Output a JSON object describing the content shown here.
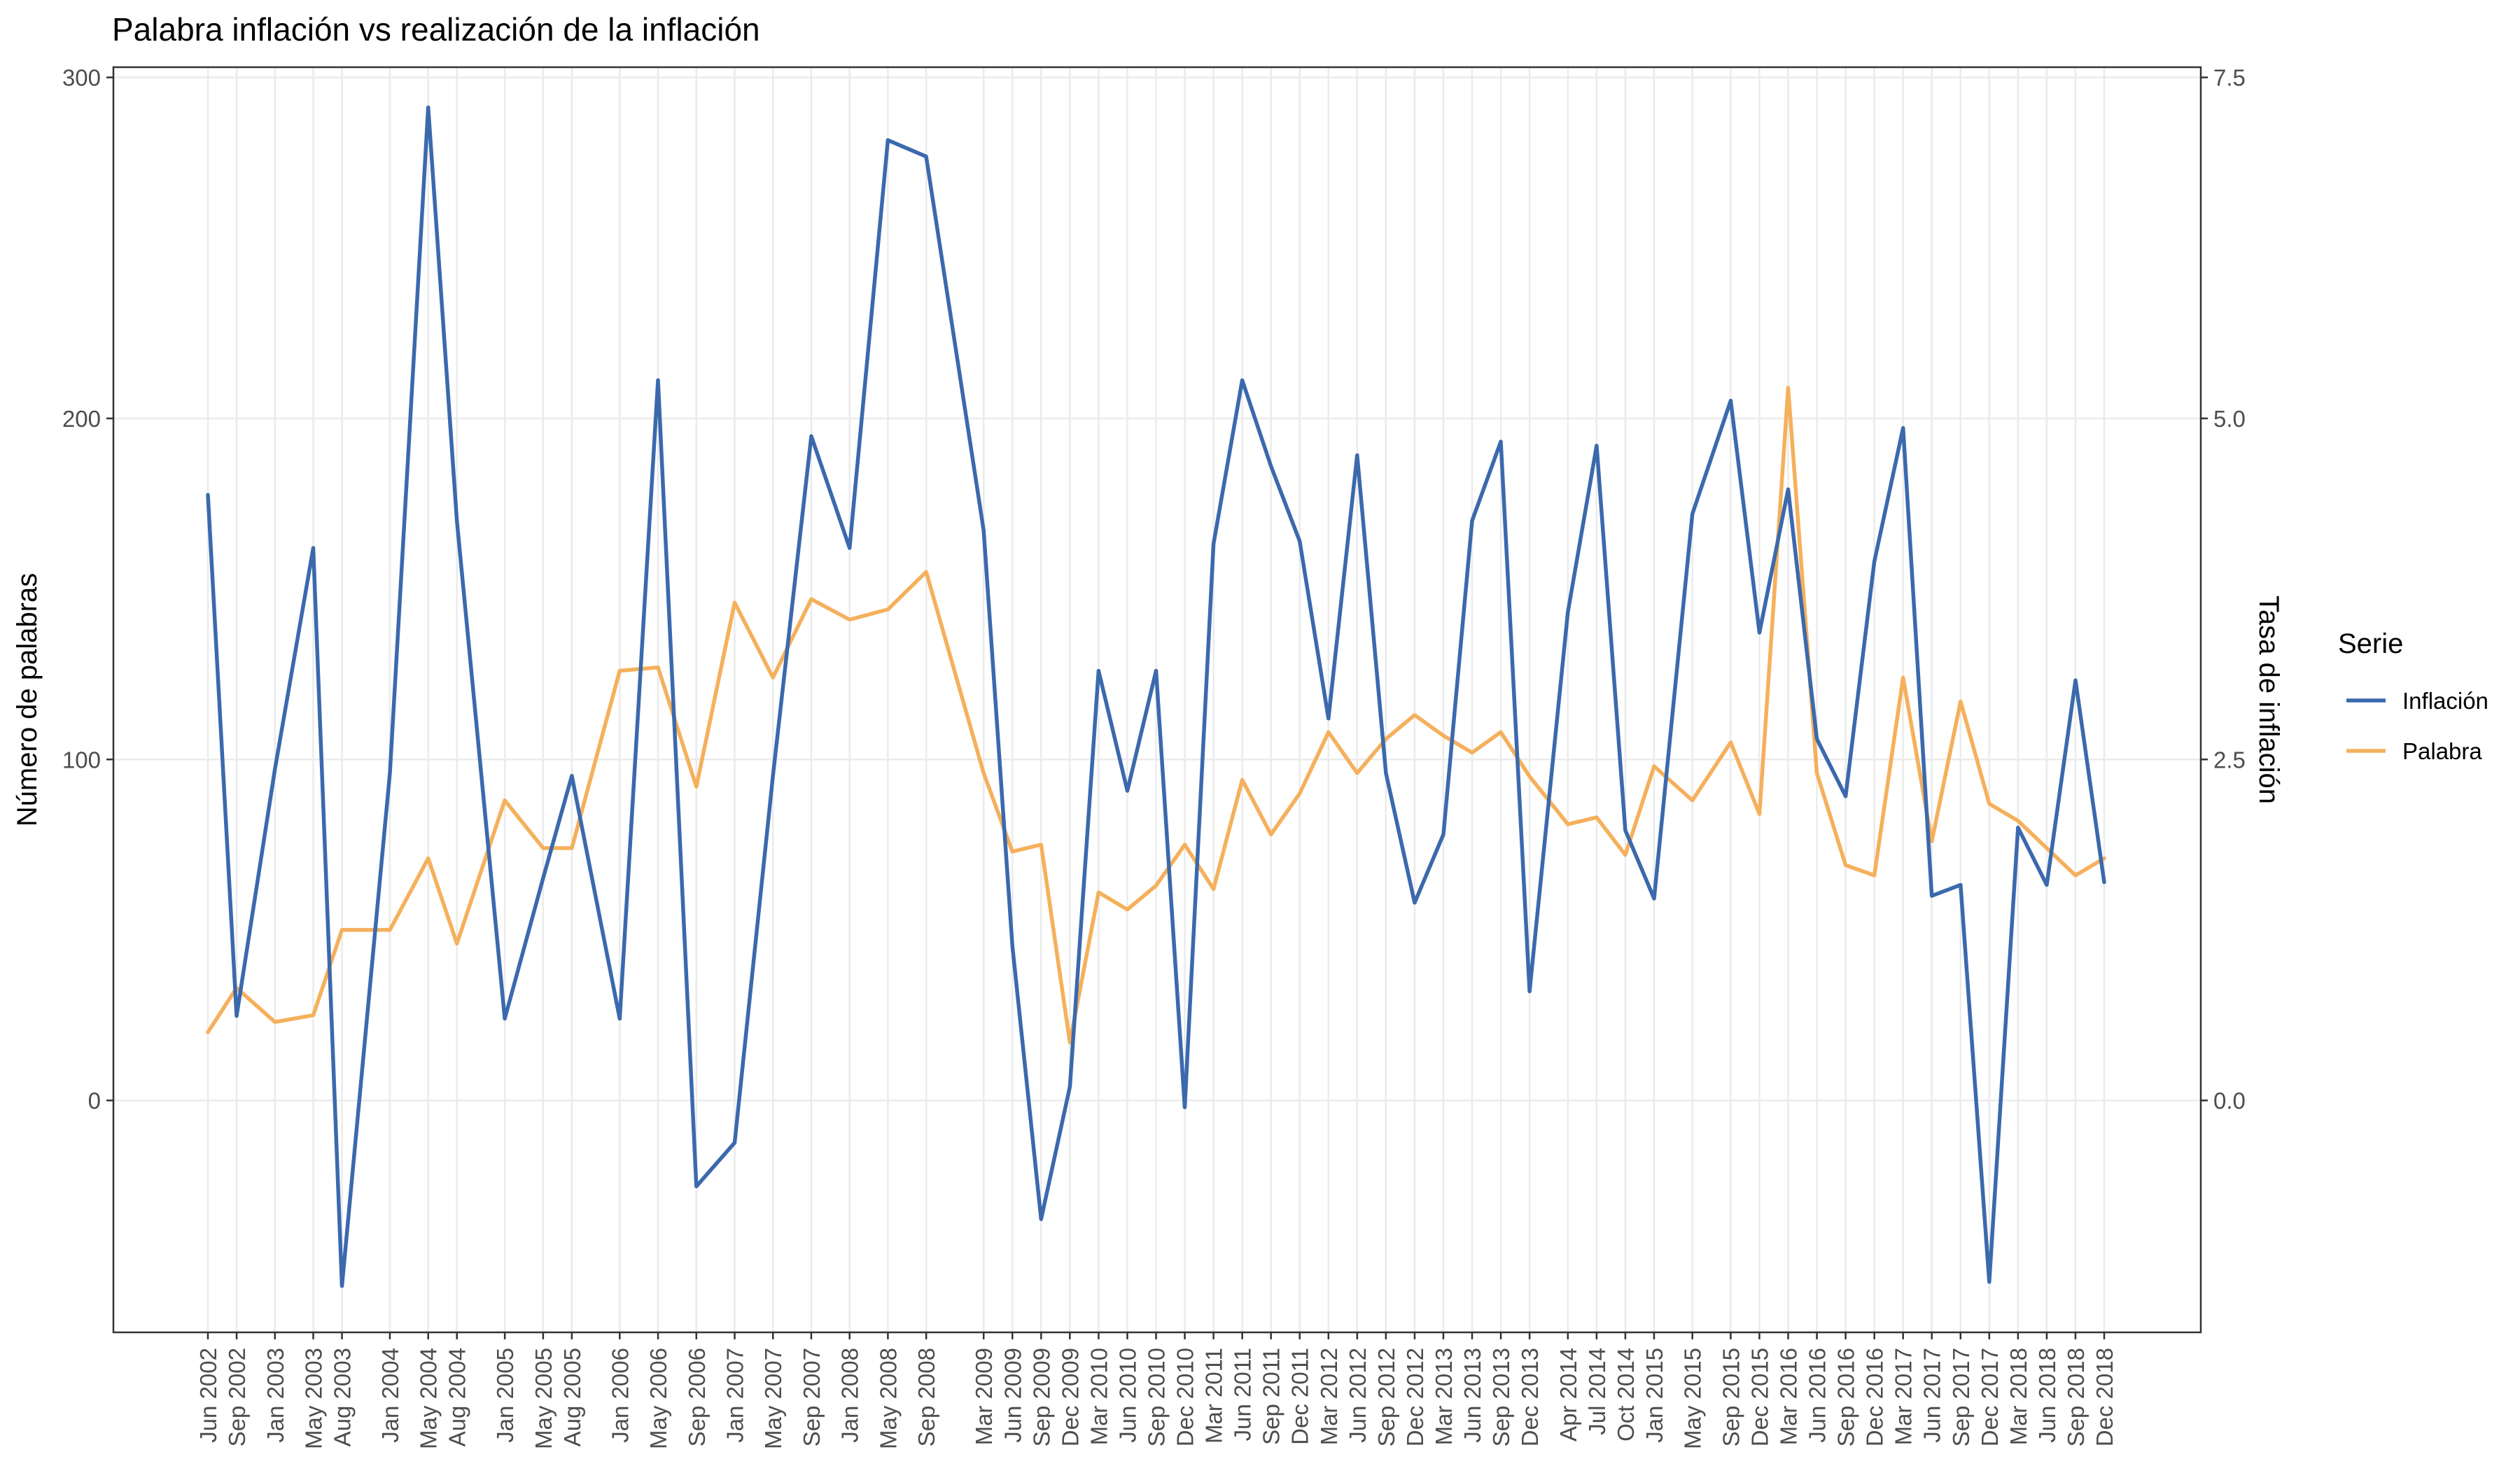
{
  "chart_data": {
    "type": "line",
    "title": "Palabra inflación vs realización de la inflación",
    "ylabel": "Número de palabras",
    "y2label": "Tasa de inflación",
    "ylim": [
      -68,
      303
    ],
    "yticks": [
      0,
      100,
      200,
      300
    ],
    "y2lim": [
      -1.7,
      7.575
    ],
    "y2ticks": [
      0.0,
      2.5,
      5.0,
      7.5
    ],
    "y2tick_labels": [
      "0.0",
      "2.5",
      "5.0",
      "7.5"
    ],
    "grid": true,
    "legend": {
      "title": "Serie",
      "position": "right"
    },
    "x": [
      "Jun 2002",
      "Sep 2002",
      "Jan 2003",
      "May 2003",
      "Aug 2003",
      "Jan 2004",
      "May 2004",
      "Aug 2004",
      "Jan 2005",
      "May 2005",
      "Aug 2005",
      "Jan 2006",
      "May 2006",
      "Sep 2006",
      "Jan 2007",
      "May 2007",
      "Sep 2007",
      "Jan 2008",
      "May 2008",
      "Sep 2008",
      "Mar 2009",
      "Jun 2009",
      "Sep 2009",
      "Dec 2009",
      "Mar 2010",
      "Jun 2010",
      "Sep 2010",
      "Dec 2010",
      "Mar 2011",
      "Jun 2011",
      "Sep 2011",
      "Dec 2011",
      "Mar 2012",
      "Jun 2012",
      "Sep 2012",
      "Dec 2012",
      "Mar 2013",
      "Jun 2013",
      "Sep 2013",
      "Dec 2013",
      "Apr 2014",
      "Jul 2014",
      "Oct 2014",
      "Jan 2015",
      "May 2015",
      "Sep 2015",
      "Dec 2015",
      "Mar 2016",
      "Jun 2016",
      "Sep 2016",
      "Dec 2016",
      "Mar 2017",
      "Jun 2017",
      "Sep 2017",
      "Dec 2017",
      "Mar 2018",
      "Jun 2018",
      "Sep 2018",
      "Dec 2018"
    ],
    "series": [
      {
        "name": "Inflación",
        "color": "#3b69ad",
        "axis": "right",
        "values": [
          4.44,
          0.62,
          2.43,
          4.05,
          -1.36,
          2.4,
          7.28,
          4.25,
          0.6,
          1.63,
          2.38,
          0.6,
          5.28,
          -0.63,
          -0.31,
          2.38,
          4.87,
          4.05,
          7.04,
          6.92,
          4.18,
          1.13,
          -0.87,
          0.1,
          3.15,
          2.27,
          3.15,
          -0.05,
          4.08,
          5.28,
          4.65,
          4.1,
          2.8,
          4.73,
          2.4,
          1.45,
          1.95,
          4.25,
          4.83,
          0.8,
          3.58,
          4.8,
          1.98,
          1.48,
          4.3,
          5.13,
          3.43,
          4.48,
          2.65,
          2.23,
          3.95,
          4.93,
          1.5,
          1.58,
          -1.33,
          2.0,
          1.58,
          3.08,
          1.6
        ]
      },
      {
        "name": "Palabra",
        "color": "#f5b05c",
        "axis": "left",
        "values": [
          20,
          33,
          23,
          25,
          50,
          50,
          71,
          46,
          88,
          74,
          74,
          126,
          127,
          92,
          146,
          124,
          147,
          141,
          144,
          155,
          96,
          73,
          75,
          17,
          61,
          56,
          63,
          75,
          62,
          94,
          78,
          90,
          108,
          96,
          106,
          113,
          107,
          102,
          108,
          95,
          81,
          83,
          72,
          98,
          88,
          105,
          84,
          209,
          96,
          69,
          66,
          124,
          76,
          117,
          87,
          82,
          74,
          66,
          71
        ]
      }
    ]
  }
}
